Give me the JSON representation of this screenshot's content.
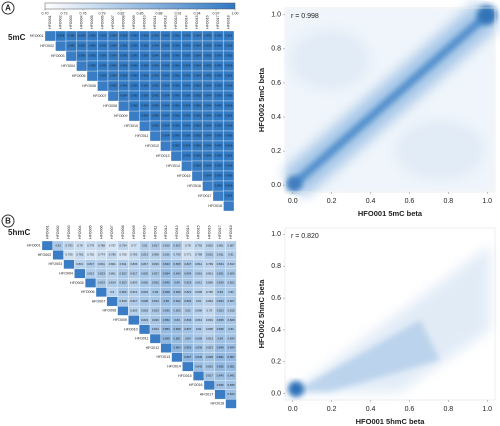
{
  "chart_data": [
    {
      "type": "heatmap",
      "panel": "A",
      "title": "5mC",
      "samples": [
        "HFO001",
        "HFO002",
        "HFO003",
        "HFO004",
        "HFO005",
        "HFO006",
        "HFO007",
        "HFO008",
        "HFO009",
        "HFO010",
        "HFO011",
        "HFO012",
        "HFO013",
        "HFO014",
        "HFO015",
        "HFO016",
        "HFO017",
        "HFO018"
      ],
      "highlighted": [
        0,
        1
      ],
      "highlight_color": "#e8562a",
      "colors": [
        "#ffffff",
        "#2f78c3"
      ],
      "diagonal_color": "#3b7dc4",
      "zlim": [
        0.7,
        1.0
      ],
      "colorbar_ticks": [
        {
          "value": 0.7,
          "label": "0.70"
        },
        {
          "value": 0.73,
          "label": "0.73"
        },
        {
          "value": 0.76,
          "label": "0.76"
        },
        {
          "value": 0.79,
          "label": "0.79"
        },
        {
          "value": 0.82,
          "label": "0.82"
        },
        {
          "value": 0.85,
          "label": "0.85"
        },
        {
          "value": 0.88,
          "label": "0.88"
        },
        {
          "value": 0.91,
          "label": "0.91"
        },
        {
          "value": 0.94,
          "label": "0.94"
        },
        {
          "value": 0.97,
          "label": "0.97"
        },
        {
          "value": 1.0,
          "label": "1.00"
        }
      ],
      "values": [
        [
          0.998,
          0.996,
          0.995,
          0.996,
          0.995,
          0.994,
          0.995,
          0.996,
          0.995,
          0.994,
          0.995,
          0.996,
          0.995,
          0.994,
          0.995,
          0.996,
          0.995
        ],
        [
          0.996,
          0.995,
          0.996,
          0.995,
          0.994,
          0.995,
          0.996,
          0.995,
          0.994,
          0.995,
          0.996,
          0.995,
          0.994,
          0.995,
          0.996,
          0.995
        ],
        [
          0.996,
          0.995,
          0.996,
          0.994,
          0.995,
          0.996,
          0.995,
          0.994,
          0.995,
          0.996,
          0.995,
          0.994,
          0.995,
          0.996,
          0.995
        ],
        [
          0.996,
          0.995,
          0.994,
          0.995,
          0.996,
          0.995,
          0.994,
          0.995,
          0.996,
          0.995,
          0.994,
          0.995,
          0.996,
          0.995
        ],
        [
          0.995,
          0.994,
          0.995,
          0.996,
          0.995,
          0.994,
          0.995,
          0.996,
          0.995,
          0.994,
          0.995,
          0.996,
          0.995
        ],
        [
          0.995,
          0.994,
          0.995,
          0.996,
          0.995,
          0.994,
          0.995,
          0.996,
          0.995,
          0.994,
          0.995,
          0.996
        ],
        [
          0.994,
          0.995,
          0.996,
          0.995,
          0.994,
          0.995,
          0.996,
          0.995,
          0.994,
          0.995,
          0.996
        ],
        [
          0.995,
          0.996,
          0.995,
          0.994,
          0.995,
          0.996,
          0.995,
          0.994,
          0.995,
          0.996
        ],
        [
          0.996,
          0.995,
          0.994,
          0.995,
          0.996,
          0.995,
          0.994,
          0.995,
          0.996
        ],
        [
          0.995,
          0.994,
          0.995,
          0.996,
          0.995,
          0.994,
          0.995,
          0.996
        ],
        [
          0.994,
          0.995,
          0.996,
          0.995,
          0.994,
          0.995,
          0.996
        ],
        [
          0.995,
          0.996,
          0.995,
          0.994,
          0.995,
          0.996
        ],
        [
          0.996,
          0.995,
          0.994,
          0.995,
          0.996
        ],
        [
          0.995,
          0.994,
          0.995,
          0.996
        ],
        [
          0.994,
          0.995,
          0.996
        ],
        [
          0.995,
          0.996
        ],
        [
          0.996
        ]
      ]
    },
    {
      "type": "density",
      "annotation": "r = 0.998",
      "xlabel": "HFO001 5mC beta",
      "ylabel": "HFO002 5mC beta",
      "xlim": [
        -0.04,
        1.04
      ],
      "ylim": [
        -0.04,
        1.04
      ],
      "xticks": [
        {
          "value": 0,
          "label": "0.0"
        },
        {
          "value": 0.2,
          "label": "0.2"
        },
        {
          "value": 0.4,
          "label": "0.4"
        },
        {
          "value": 0.6,
          "label": "0.6"
        },
        {
          "value": 0.8,
          "label": "0.8"
        },
        {
          "value": 1,
          "label": "1.0"
        }
      ],
      "yticks": [
        {
          "value": 0,
          "label": "0.0"
        },
        {
          "value": 0.2,
          "label": "0.2"
        },
        {
          "value": 0.4,
          "label": "0.4"
        },
        {
          "value": 0.6,
          "label": "0.6"
        },
        {
          "value": 0.8,
          "label": "0.8"
        },
        {
          "value": 1,
          "label": "1.0"
        }
      ]
    },
    {
      "type": "heatmap",
      "panel": "B",
      "title": "5hmC",
      "samples": [
        "HFO001",
        "HFO002",
        "HFO003",
        "HFO004",
        "HFO005",
        "HFO006",
        "HFO007",
        "HFO008",
        "HFO009",
        "HFO010",
        "HFO011",
        "HFO012",
        "HFO013",
        "HFO014",
        "HFO015",
        "HFO016",
        "HFO017",
        "HFO018"
      ],
      "highlighted": [
        0,
        1
      ],
      "highlight_color": "#e8562a",
      "colors": [
        "#ffffff",
        "#2f78c3"
      ],
      "diagonal_color": "#3b7dc4",
      "zlim": [
        0.7,
        1.0
      ],
      "values": [
        [
          0.82,
          0.793,
          0.78,
          0.779,
          0.788,
          0.757,
          0.794,
          0.77,
          0.81,
          0.817,
          0.815,
          0.823,
          0.78,
          0.792,
          0.802,
          0.801,
          0.807
        ],
        [
          0.769,
          0.782,
          0.762,
          0.774,
          0.789,
          0.759,
          0.783,
          0.813,
          0.806,
          0.816,
          0.799,
          0.771,
          0.789,
          0.815,
          0.811,
          0.81
        ],
        [
          0.801,
          0.817,
          0.811,
          0.801,
          0.811,
          0.806,
          0.817,
          0.819,
          0.843,
          0.835,
          0.827,
          0.812,
          0.799,
          0.824,
          0.813
        ],
        [
          0.813,
          0.823,
          0.801,
          0.823,
          0.817,
          0.825,
          0.827,
          0.854,
          0.843,
          0.834,
          0.816,
          0.801,
          0.831,
          0.826
        ],
        [
          0.823,
          0.814,
          0.823,
          0.803,
          0.826,
          0.832,
          0.849,
          0.84,
          0.829,
          0.812,
          0.806,
          0.829,
          0.822
        ],
        [
          0.8,
          0.826,
          0.812,
          0.824,
          0.83,
          0.848,
          0.839,
          0.822,
          0.805,
          0.796,
          0.83,
          0.82
        ],
        [
          0.818,
          0.817,
          0.828,
          0.831,
          0.85,
          0.842,
          0.834,
          0.81,
          0.804,
          0.834,
          0.827
        ],
        [
          0.803,
          0.818,
          0.823,
          0.836,
          0.829,
          0.82,
          0.806,
          0.79,
          0.823,
          0.815
        ],
        [
          0.823,
          0.829,
          0.852,
          0.84,
          0.833,
          0.813,
          0.803,
          0.835,
          0.828
        ],
        [
          0.831,
          0.853,
          0.849,
          0.837,
          0.82,
          0.808,
          0.836,
          0.83
        ],
        [
          0.858,
          0.851,
          0.84,
          0.826,
          0.813,
          0.84,
          0.834
        ],
        [
          0.864,
          0.853,
          0.836,
          0.823,
          0.848,
          0.844
        ],
        [
          0.867,
          0.849,
          0.838,
          0.861,
          0.857
        ],
        [
          0.845,
          0.832,
          0.855,
          0.851
        ],
        [
          0.827,
          0.843,
          0.842
        ],
        [
          0.836,
          0.835
        ],
        [
          0.844
        ]
      ]
    },
    {
      "type": "density",
      "annotation": "r = 0.820",
      "xlabel": "HFO001 5hmC beta",
      "ylabel": "HFO002 5hmC beta",
      "xlim": [
        -0.04,
        1.04
      ],
      "ylim": [
        -0.04,
        1.04
      ],
      "xticks": [
        {
          "value": 0,
          "label": "0.0"
        },
        {
          "value": 0.2,
          "label": "0.2"
        },
        {
          "value": 0.4,
          "label": "0.4"
        },
        {
          "value": 0.6,
          "label": "0.6"
        },
        {
          "value": 0.8,
          "label": "0.8"
        },
        {
          "value": 1,
          "label": "1.0"
        }
      ],
      "yticks": [
        {
          "value": 0,
          "label": "0.0"
        },
        {
          "value": 0.2,
          "label": "0.2"
        },
        {
          "value": 0.4,
          "label": "0.4"
        },
        {
          "value": 0.6,
          "label": "0.6"
        },
        {
          "value": 0.8,
          "label": "0.8"
        },
        {
          "value": 1,
          "label": "1.0"
        }
      ]
    }
  ]
}
